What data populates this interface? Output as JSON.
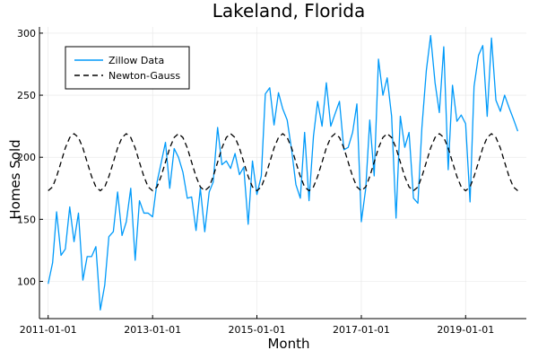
{
  "chart_data": {
    "type": "line",
    "title": "Lakeland, Florida",
    "xlabel": "Month",
    "ylabel": "Homes Sold",
    "xlim": [
      "2010-11-01",
      "2020-03-01"
    ],
    "ylim": [
      70,
      305
    ],
    "x_ticks": [
      "2011-01-01",
      "2013-01-01",
      "2015-01-01",
      "2017-01-01",
      "2019-01-01"
    ],
    "y_ticks": [
      100,
      150,
      200,
      250,
      300
    ],
    "grid": true,
    "legend_position": "top-left",
    "start_date": "2011-01-01",
    "frequency": "monthly",
    "series": [
      {
        "name": "Zillow Data",
        "color": "#009AFA",
        "style": "solid",
        "values": [
          98,
          115,
          156,
          121,
          126,
          160,
          132,
          155,
          101,
          120,
          120,
          128,
          77,
          97,
          136,
          140,
          172,
          137,
          148,
          175,
          117,
          165,
          155,
          155,
          152,
          180,
          195,
          212,
          175,
          207,
          200,
          188,
          167,
          168,
          141,
          175,
          140,
          172,
          180,
          224,
          194,
          197,
          191,
          203,
          186,
          192,
          146,
          197,
          170,
          185,
          251,
          256,
          226,
          252,
          239,
          230,
          206,
          178,
          167,
          220,
          165,
          217,
          245,
          225,
          260,
          225,
          235,
          245,
          206,
          208,
          220,
          243,
          148,
          175,
          230,
          185,
          279,
          250,
          264,
          233,
          151,
          233,
          208,
          220,
          167,
          163,
          224,
          270,
          298,
          260,
          236,
          289,
          190,
          258,
          229,
          234,
          227,
          164,
          257,
          282,
          290,
          233,
          296,
          246,
          237,
          250,
          240,
          231,
          221
        ]
      },
      {
        "name": "Newton-Gauss",
        "color": "#000000",
        "style": "dashed",
        "mean": 196,
        "amplitude": 23,
        "period_months": 12,
        "peak_month_index": 6
      }
    ]
  }
}
